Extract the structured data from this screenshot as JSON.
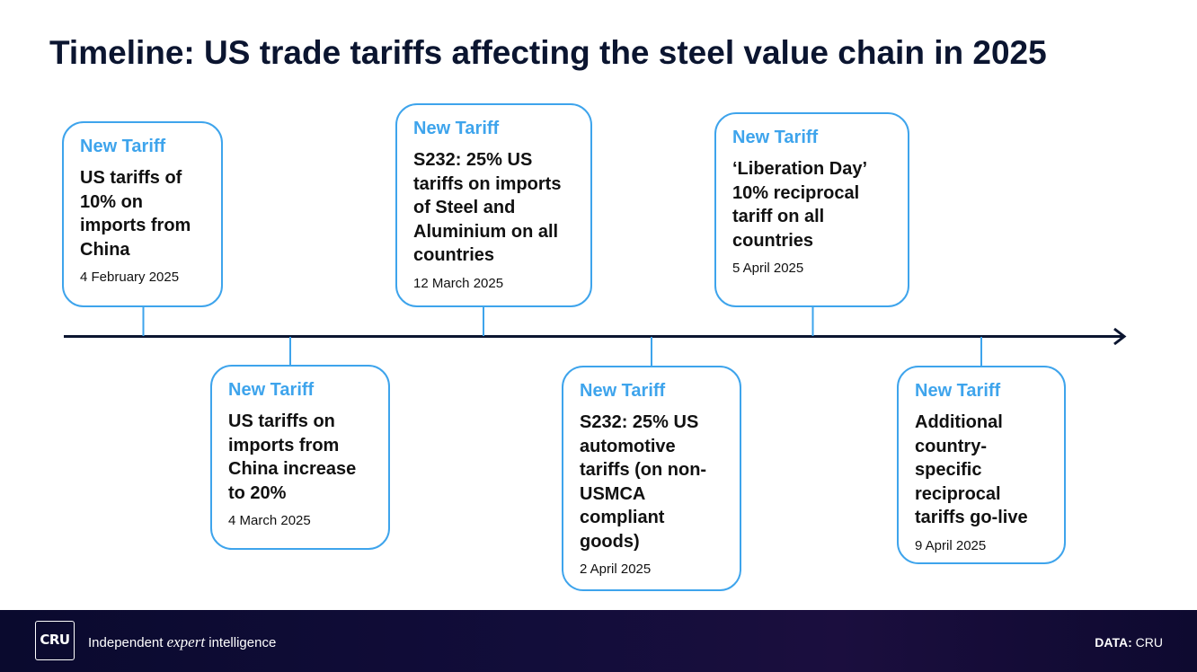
{
  "title": "Timeline: US trade tariffs affecting the steel value chain in 2025",
  "colors": {
    "accent": "#3ea4ec",
    "title": "#0b1530",
    "axis": "#0b1530",
    "footer_bg": "#0a0a2e"
  },
  "events": [
    {
      "tag": "New Tariff",
      "description": "US tariffs of 10% on imports from China",
      "date": "4 February 2025",
      "position": "above"
    },
    {
      "tag": "New Tariff",
      "description": "US tariffs on imports from China increase to 20%",
      "date": "4 March 2025",
      "position": "below"
    },
    {
      "tag": "New Tariff",
      "description": "S232: 25% US tariffs on imports of Steel and Aluminium on all countries",
      "date": "12 March 2025",
      "position": "above"
    },
    {
      "tag": "New Tariff",
      "description": "S232: 25% US automotive tariffs (on non-USMCA compliant goods)",
      "date": "2 April 2025",
      "position": "below"
    },
    {
      "tag": "New Tariff",
      "description": "‘Liberation Day’ 10% reciprocal tariff on all countries",
      "date": "5 April 2025",
      "position": "above"
    },
    {
      "tag": "New Tariff",
      "description": "Additional country-specific reciprocal tariffs go-live",
      "date": "9 April 2025",
      "position": "below"
    }
  ],
  "footer": {
    "logo": "CRU",
    "tagline_before": "Independent ",
    "tagline_emphasis": "expert",
    "tagline_after": " intelligence",
    "source_label": "DATA:",
    "source_value": " CRU"
  }
}
